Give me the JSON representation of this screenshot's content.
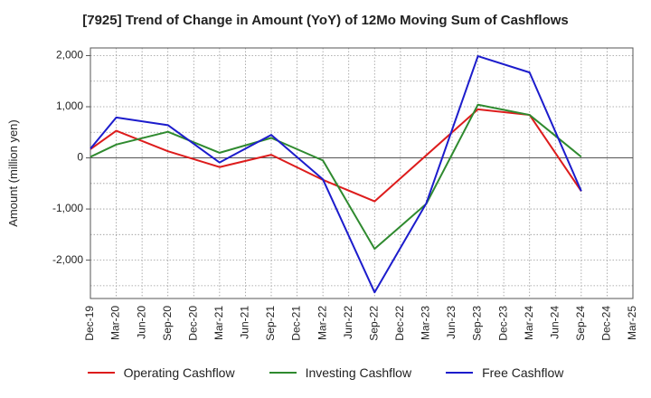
{
  "chart_data": {
    "type": "line",
    "title": "[7925]  Trend of Change in Amount (YoY) of 12Mo Moving Sum of Cashflows",
    "xlabel": "",
    "ylabel": "Amount (million yen)",
    "categories": [
      "Dec-19",
      "Mar-20",
      "Jun-20",
      "Sep-20",
      "Dec-20",
      "Mar-21",
      "Jun-21",
      "Sep-21",
      "Dec-21",
      "Mar-22",
      "Jun-22",
      "Sep-22",
      "Dec-22",
      "Mar-23",
      "Jun-23",
      "Sep-23",
      "Dec-23",
      "Mar-24",
      "Jun-24",
      "Sep-24",
      "Dec-24",
      "Mar-25"
    ],
    "ylim": [
      -2750,
      2150
    ],
    "yticks": [
      2000,
      1000,
      0,
      -1000,
      -2000
    ],
    "ytick_labels": [
      "2,000",
      "1,000",
      "0",
      "-1,000",
      "-2,000"
    ],
    "grid": true,
    "legend_position": "bottom",
    "series": [
      {
        "name": "Operating Cashflow",
        "color": "#dd1c1c",
        "values": [
          170,
          530,
          null,
          130,
          null,
          -180,
          null,
          60,
          null,
          -430,
          null,
          -850,
          null,
          null,
          null,
          950,
          null,
          840,
          null,
          -650,
          null,
          null
        ]
      },
      {
        "name": "Investing Cashflow",
        "color": "#2f8a2f",
        "values": [
          20,
          260,
          null,
          510,
          null,
          100,
          null,
          390,
          null,
          -50,
          null,
          -1780,
          null,
          -900,
          null,
          1040,
          null,
          840,
          null,
          20,
          null,
          null
        ]
      },
      {
        "name": "Free Cashflow",
        "color": "#1c1ccc",
        "values": [
          180,
          790,
          null,
          640,
          null,
          -90,
          null,
          450,
          null,
          -420,
          null,
          -2630,
          null,
          -890,
          null,
          1990,
          null,
          1670,
          null,
          -650,
          null,
          null
        ]
      }
    ]
  }
}
